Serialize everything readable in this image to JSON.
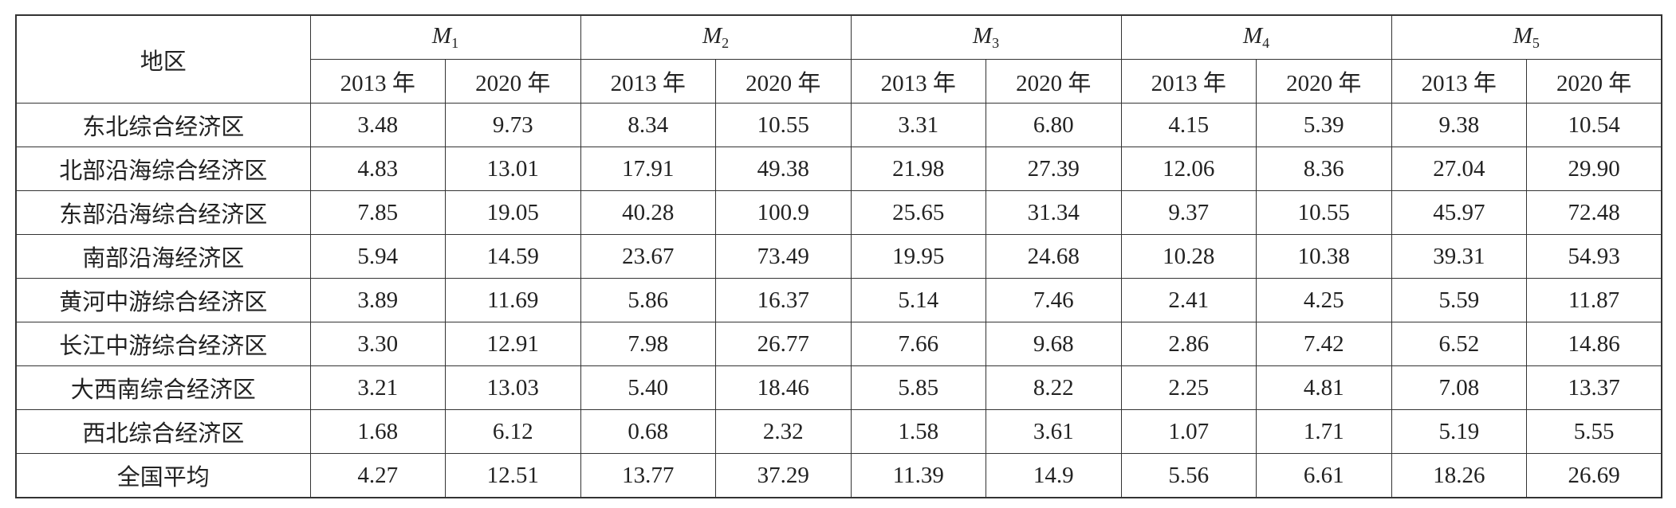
{
  "table": {
    "region_header": "地区",
    "groups": [
      {
        "letter": "M",
        "sub": "1"
      },
      {
        "letter": "M",
        "sub": "2"
      },
      {
        "letter": "M",
        "sub": "3"
      },
      {
        "letter": "M",
        "sub": "4"
      },
      {
        "letter": "M",
        "sub": "5"
      }
    ],
    "years": [
      "2013 年",
      "2020 年"
    ],
    "rows": [
      [
        "东北综合经济区",
        "3.48",
        "9.73",
        "8.34",
        "10.55",
        "3.31",
        "6.80",
        "4.15",
        "5.39",
        "9.38",
        "10.54"
      ],
      [
        "北部沿海综合经济区",
        "4.83",
        "13.01",
        "17.91",
        "49.38",
        "21.98",
        "27.39",
        "12.06",
        "8.36",
        "27.04",
        "29.90"
      ],
      [
        "东部沿海综合经济区",
        "7.85",
        "19.05",
        "40.28",
        "100.9",
        "25.65",
        "31.34",
        "9.37",
        "10.55",
        "45.97",
        "72.48"
      ],
      [
        "南部沿海经济区",
        "5.94",
        "14.59",
        "23.67",
        "73.49",
        "19.95",
        "24.68",
        "10.28",
        "10.38",
        "39.31",
        "54.93"
      ],
      [
        "黄河中游综合经济区",
        "3.89",
        "11.69",
        "5.86",
        "16.37",
        "5.14",
        "7.46",
        "2.41",
        "4.25",
        "5.59",
        "11.87"
      ],
      [
        "长江中游综合经济区",
        "3.30",
        "12.91",
        "7.98",
        "26.77",
        "7.66",
        "9.68",
        "2.86",
        "7.42",
        "6.52",
        "14.86"
      ],
      [
        "大西南综合经济区",
        "3.21",
        "13.03",
        "5.40",
        "18.46",
        "5.85",
        "8.22",
        "2.25",
        "4.81",
        "7.08",
        "13.37"
      ],
      [
        "西北综合经济区",
        "1.68",
        "6.12",
        "0.68",
        "2.32",
        "1.58",
        "3.61",
        "1.07",
        "1.71",
        "5.19",
        "5.55"
      ],
      [
        "全国平均",
        "4.27",
        "12.51",
        "13.77",
        "37.29",
        "11.39",
        "14.9",
        "5.56",
        "6.61",
        "18.26",
        "26.69"
      ]
    ]
  }
}
